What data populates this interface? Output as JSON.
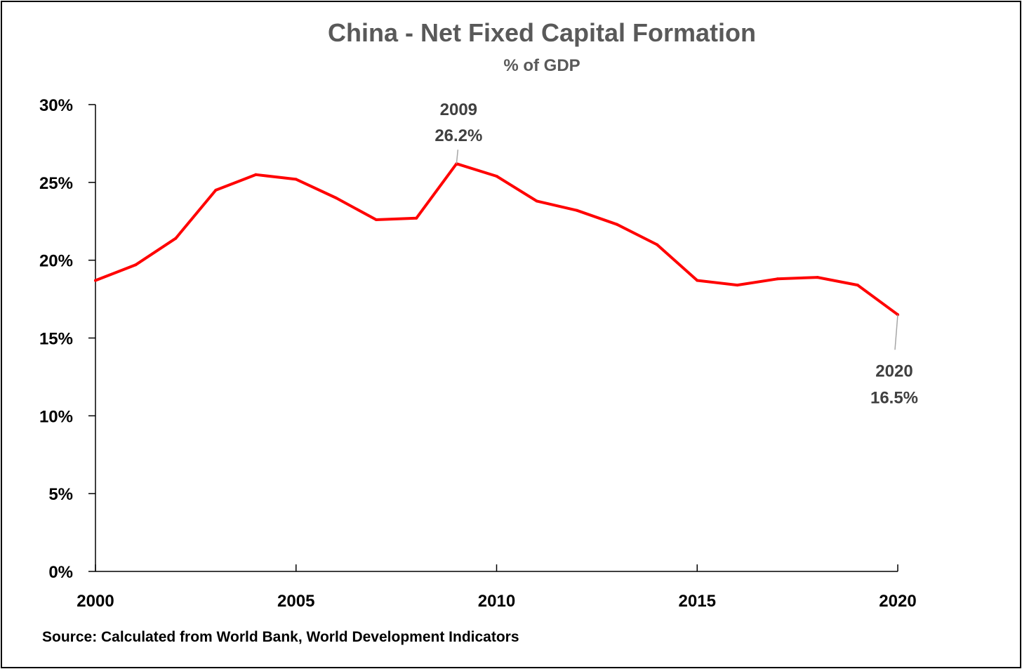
{
  "chart_data": {
    "type": "line",
    "title": "China - Net Fixed Capital Formation",
    "subtitle": "% of GDP",
    "source": "Source: Calculated from World Bank, World Development Indicators",
    "x": [
      2000,
      2001,
      2002,
      2003,
      2004,
      2005,
      2006,
      2007,
      2008,
      2009,
      2010,
      2011,
      2012,
      2013,
      2014,
      2015,
      2016,
      2017,
      2018,
      2019,
      2020
    ],
    "series": [
      {
        "values": [
          18.7,
          19.7,
          21.4,
          24.5,
          25.5,
          25.2,
          24.0,
          22.6,
          22.7,
          26.2,
          25.4,
          23.8,
          23.2,
          22.3,
          21.0,
          18.7,
          18.4,
          18.8,
          18.9,
          18.4,
          16.5
        ],
        "color": "#ff0000"
      }
    ],
    "ylim": [
      0,
      30
    ],
    "xlim": [
      2000,
      2020
    ],
    "yticks": [
      0,
      5,
      10,
      15,
      20,
      25,
      30
    ],
    "ytick_labels": [
      "0%",
      "5%",
      "10%",
      "15%",
      "20%",
      "25%",
      "30%"
    ],
    "xticks": [
      2000,
      2005,
      2010,
      2015,
      2020
    ],
    "xtick_labels": [
      "2000",
      "2005",
      "2010",
      "2015",
      "2020"
    ],
    "grid": false,
    "legend": "none",
    "annotations": [
      {
        "x": 2009,
        "y": 26.2,
        "year_label": "2009",
        "value_label": "26.2%",
        "position": "above"
      },
      {
        "x": 2020,
        "y": 16.5,
        "year_label": "2020",
        "value_label": "16.5%",
        "position": "below"
      }
    ]
  }
}
